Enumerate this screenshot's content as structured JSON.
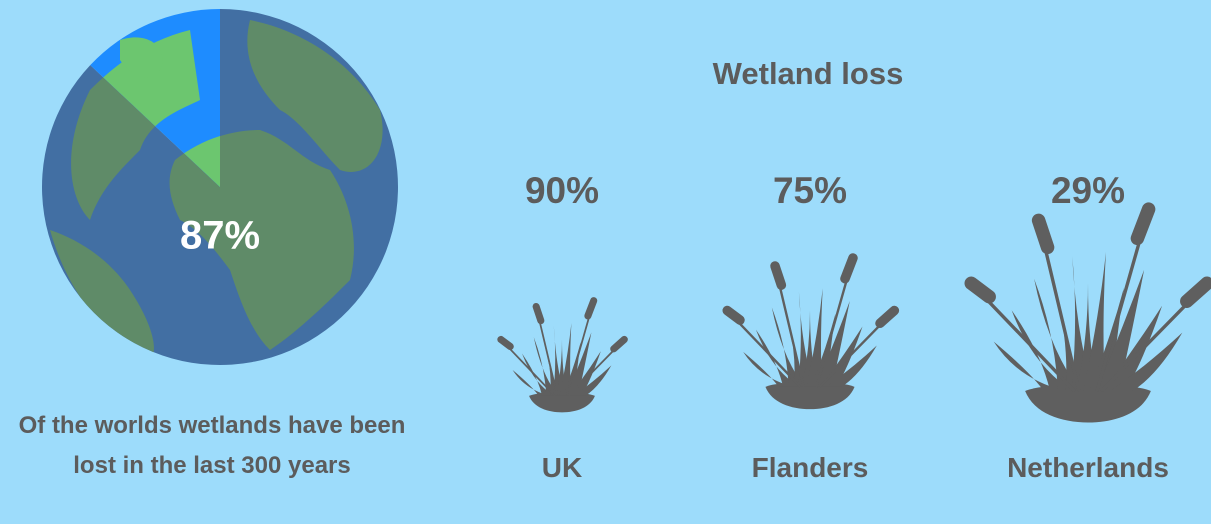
{
  "chart_data": [
    {
      "type": "pie",
      "values": [
        87,
        13
      ],
      "value_labels": [
        "87%",
        null
      ],
      "colors": [
        "#426fa3",
        "#1e8cff"
      ],
      "caption": "Of the worlds wetlands have been lost in the last 300 years"
    },
    {
      "type": "pictograph",
      "title": "Wetland loss",
      "categories": [
        "UK",
        "Flanders",
        "Netherlands"
      ],
      "values": [
        90,
        75,
        29
      ],
      "value_labels": [
        "90%",
        "75%",
        "29%"
      ],
      "color": "#5f5f5f"
    }
  ]
}
